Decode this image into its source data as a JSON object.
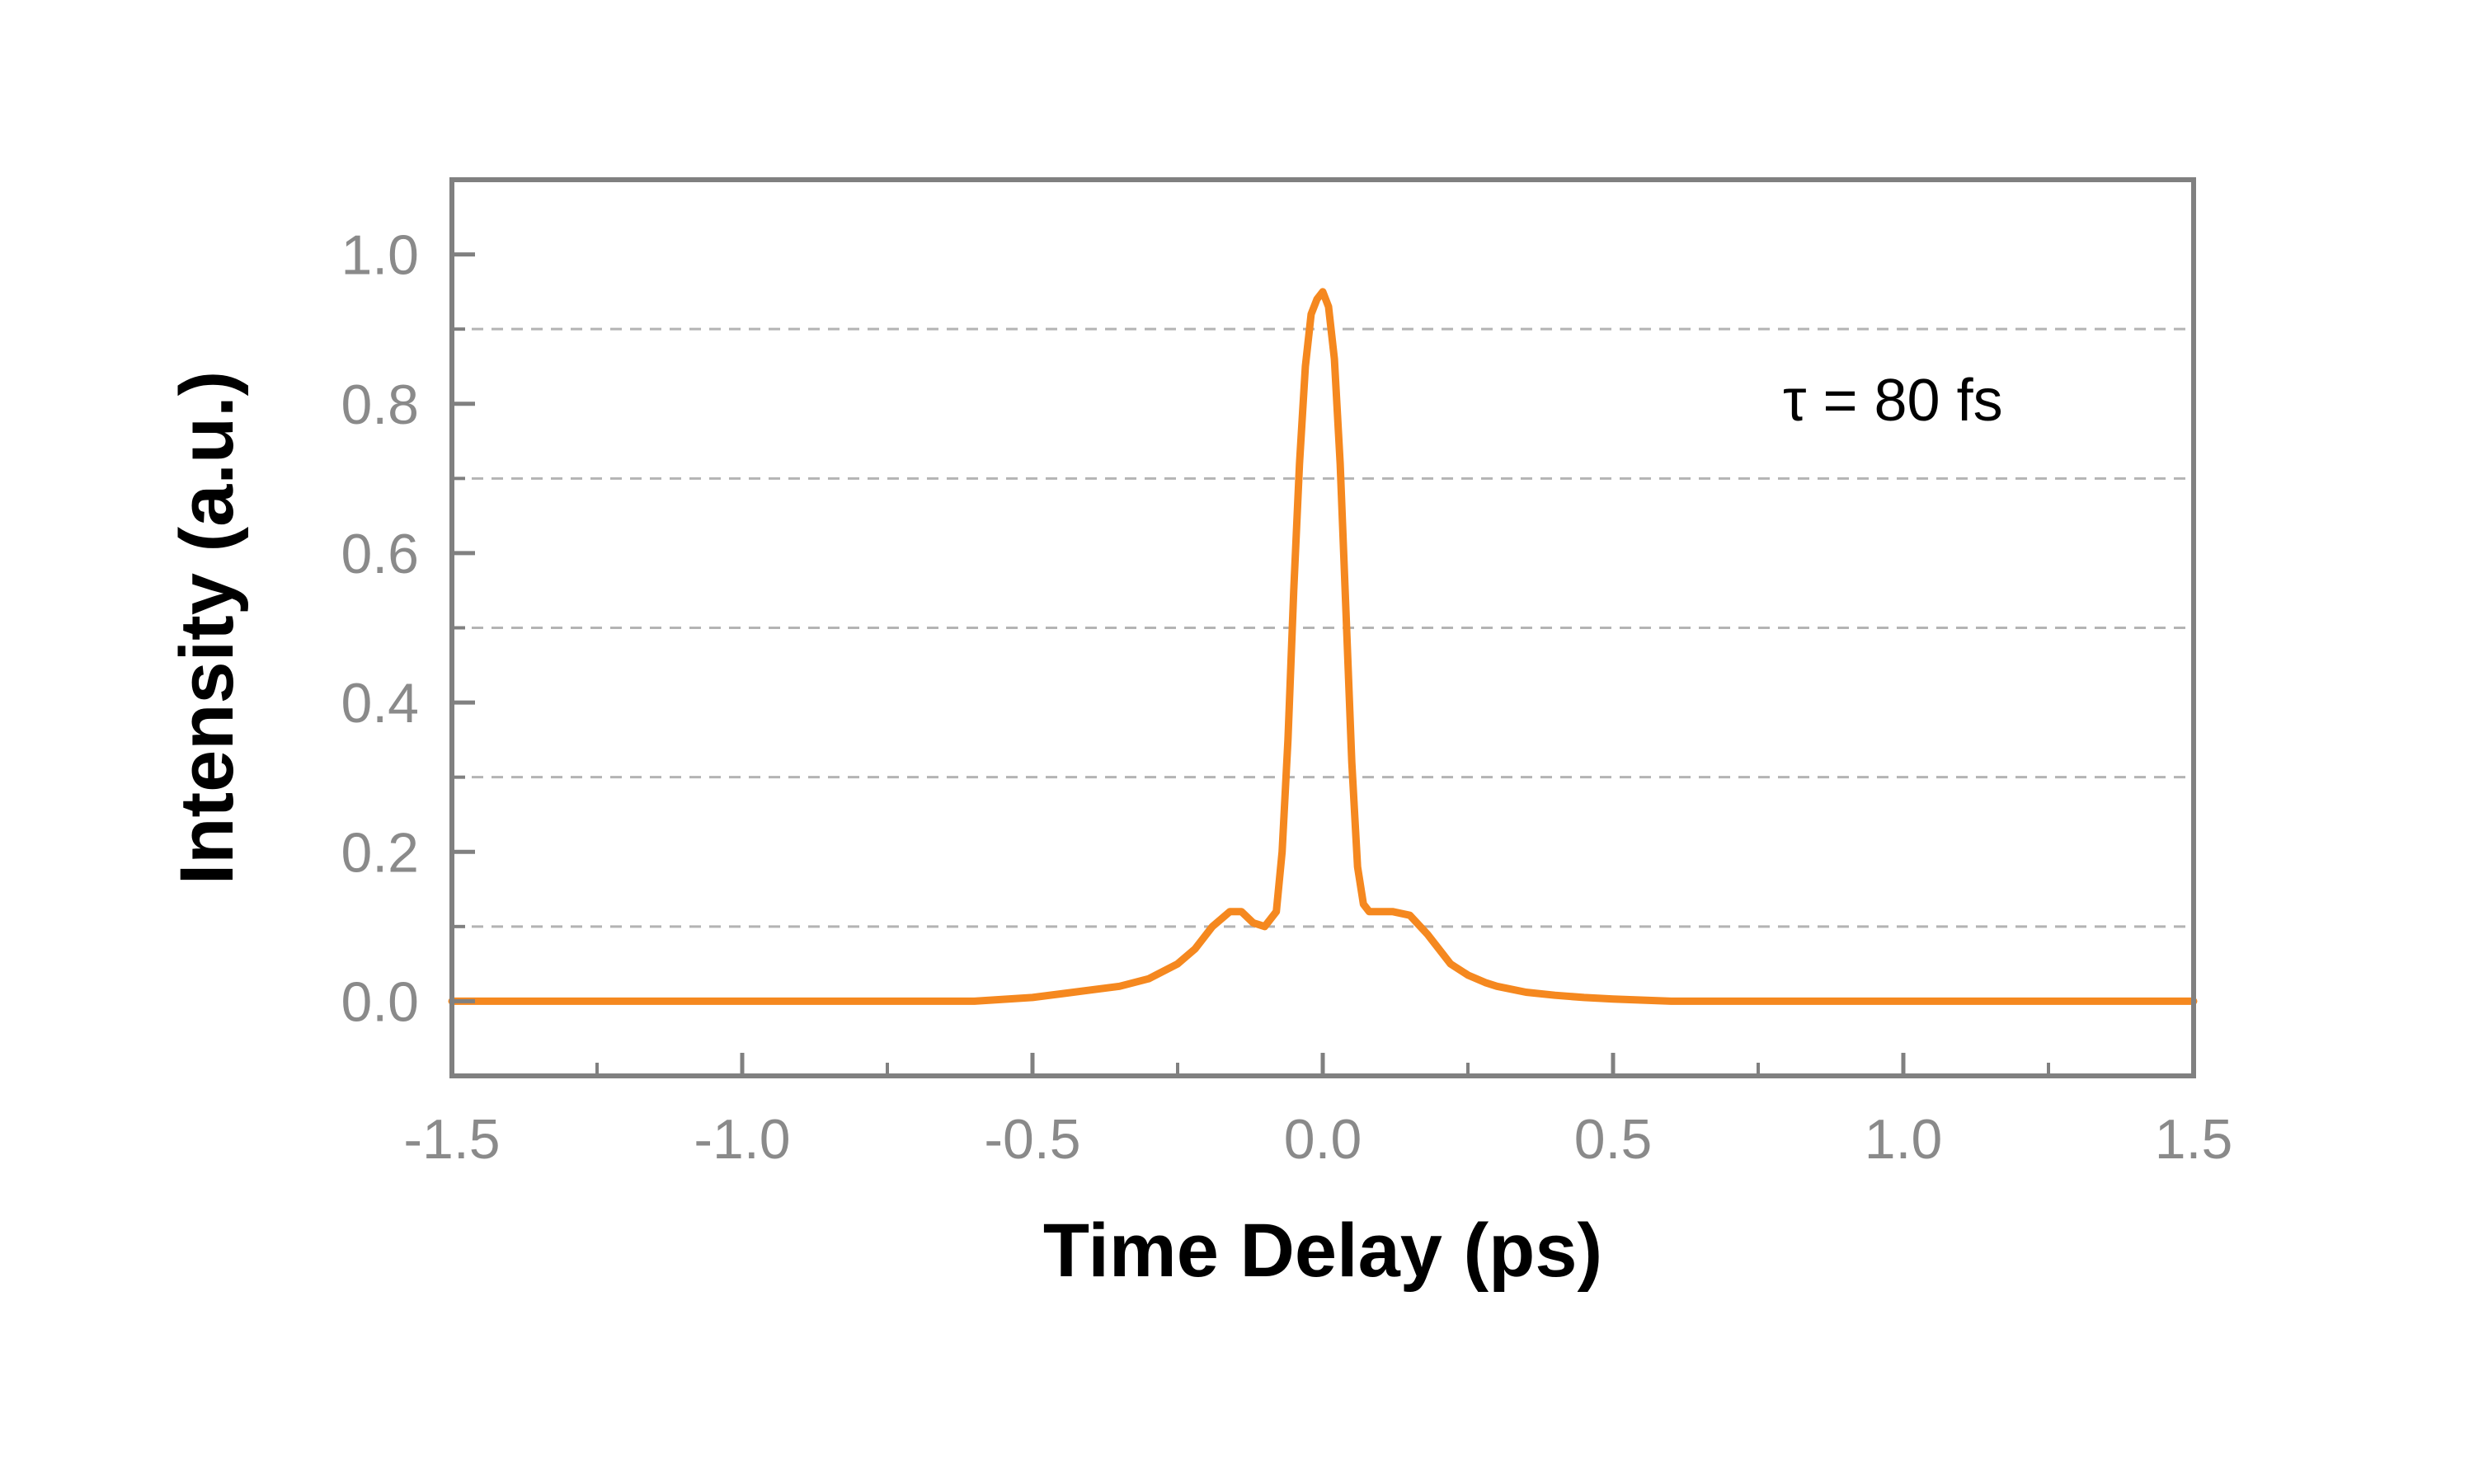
{
  "chart_data": {
    "type": "line",
    "title": "",
    "xlabel": "Time Delay (ps)",
    "ylabel": "Intensity (a.u.)",
    "xlim": [
      -1.5,
      1.5
    ],
    "ylim": [
      -0.1,
      1.1
    ],
    "x_ticks": [
      -1.5,
      -1.0,
      -0.5,
      0.0,
      0.5,
      1.0,
      1.5
    ],
    "x_tick_labels": [
      "-1.5",
      "-1.0",
      "-0.5",
      "0.0",
      "0.5",
      "1.0",
      "1.5"
    ],
    "y_ticks": [
      0.0,
      0.2,
      0.4,
      0.6,
      0.8,
      1.0
    ],
    "y_tick_labels": [
      "0.0",
      "0.2",
      "0.4",
      "0.6",
      "0.8",
      "1.0"
    ],
    "y_gridlines": [
      0.1,
      0.3,
      0.5,
      0.7,
      0.9
    ],
    "grid": "horizontal dashed",
    "annotation": "τ = 80 fs",
    "colors": {
      "series": "#f5881f",
      "frame": "#808080",
      "grid": "#b4b4b4",
      "tick_label": "#8a8a8a"
    },
    "series": [
      {
        "x": [
          -1.5,
          -1.4,
          -1.3,
          -1.2,
          -1.1,
          -1.0,
          -0.9,
          -0.8,
          -0.7,
          -0.6,
          -0.5,
          -0.45,
          -0.4,
          -0.35,
          -0.3,
          -0.25,
          -0.22,
          -0.19,
          -0.16,
          -0.14,
          -0.12,
          -0.1,
          -0.08,
          -0.07,
          -0.06,
          -0.05,
          -0.04,
          -0.03,
          -0.02,
          -0.01,
          0.0,
          0.01,
          0.02,
          0.03,
          0.04,
          0.05,
          0.06,
          0.07,
          0.08,
          0.1,
          0.12,
          0.15,
          0.18,
          0.2,
          0.22,
          0.25,
          0.28,
          0.3,
          0.35,
          0.4,
          0.45,
          0.5,
          0.6,
          0.7,
          0.8,
          0.9,
          1.0,
          1.1,
          1.2,
          1.3,
          1.4,
          1.5
        ],
        "y": [
          0.0,
          0.0,
          0.0,
          0.0,
          0.0,
          0.0,
          0.0,
          0.0,
          0.0,
          0.0,
          0.005,
          0.01,
          0.015,
          0.02,
          0.03,
          0.05,
          0.07,
          0.1,
          0.12,
          0.12,
          0.105,
          0.1,
          0.12,
          0.2,
          0.35,
          0.55,
          0.72,
          0.85,
          0.92,
          0.94,
          0.95,
          0.93,
          0.86,
          0.72,
          0.52,
          0.32,
          0.18,
          0.13,
          0.12,
          0.12,
          0.12,
          0.115,
          0.09,
          0.07,
          0.05,
          0.035,
          0.025,
          0.02,
          0.012,
          0.008,
          0.005,
          0.003,
          0.0,
          0.0,
          0.0,
          0.0,
          0.0,
          0.0,
          0.0,
          0.0,
          0.0,
          0.0
        ]
      }
    ]
  }
}
